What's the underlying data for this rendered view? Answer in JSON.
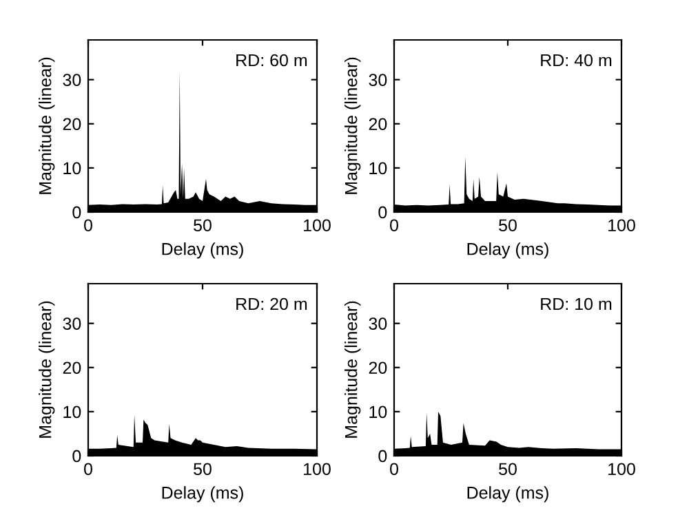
{
  "chart_data": [
    {
      "type": "area",
      "xlabel": "Delay (ms)",
      "ylabel": "Magnitude (linear)",
      "annotations": [
        "RD: 60 m"
      ],
      "xlim": [
        0,
        100
      ],
      "ylim": [
        0,
        39
      ],
      "xticks": [
        0,
        50,
        100
      ],
      "yticks": [
        0,
        10,
        20,
        30
      ],
      "grid": false,
      "series": [
        {
          "color": "#000000",
          "x": [
            0,
            5,
            10,
            15,
            20,
            25,
            30,
            32.2,
            32.6,
            33.0,
            35,
            37.5,
            38.3,
            39.0,
            39.6,
            40.0,
            40.4,
            41.0,
            41.5,
            41.9,
            42.4,
            44,
            46,
            47,
            48.5,
            50,
            51.5,
            52,
            53,
            55,
            58,
            60,
            62,
            64,
            66,
            70,
            75,
            80,
            85,
            90,
            95,
            100
          ],
          "values": [
            1.6,
            1.7,
            1.6,
            1.8,
            1.7,
            1.8,
            1.7,
            1.8,
            6,
            2,
            2.2,
            4.5,
            5,
            3,
            3,
            32,
            4,
            11,
            3,
            10,
            3,
            3,
            3.5,
            4.5,
            3,
            2.5,
            7.5,
            5,
            4,
            3.5,
            2.5,
            3.5,
            3,
            3.5,
            2.5,
            2,
            2.5,
            2,
            1.8,
            1.7,
            1.6,
            1.6
          ]
        }
      ]
    },
    {
      "type": "area",
      "xlabel": "Delay (ms)",
      "ylabel": "Magnitude (linear)",
      "annotations": [
        "RD: 40 m"
      ],
      "xlim": [
        0,
        100
      ],
      "ylim": [
        0,
        39
      ],
      "xticks": [
        0,
        50,
        100
      ],
      "yticks": [
        0,
        10,
        20,
        30
      ],
      "grid": false,
      "series": [
        {
          "color": "#000000",
          "x": [
            0,
            5,
            10,
            15,
            20,
            24.0,
            24.4,
            24.9,
            28,
            30.8,
            31.3,
            31.9,
            33,
            34.5,
            34.9,
            35.4,
            37,
            37.5,
            38.2,
            40,
            44.9,
            45.4,
            46,
            48,
            49.4,
            50,
            53,
            57,
            60,
            65,
            72,
            75,
            80,
            85,
            90,
            95,
            100
          ],
          "values": [
            1.7,
            1.5,
            1.6,
            1.5,
            1.6,
            1.7,
            6.2,
            1.8,
            1.8,
            2,
            12.5,
            4,
            3,
            2.5,
            7.5,
            3,
            3.5,
            8,
            3.5,
            2.5,
            2.5,
            9,
            4,
            3.5,
            6.5,
            3.5,
            2.8,
            3,
            2.8,
            2.5,
            2,
            2,
            1.8,
            1.7,
            1.6,
            1.5,
            1.5
          ]
        }
      ]
    },
    {
      "type": "area",
      "xlabel": "Delay (ms)",
      "ylabel": "Magnitude (linear)",
      "annotations": [
        "RD: 20 m"
      ],
      "xlim": [
        0,
        100
      ],
      "ylim": [
        0,
        39
      ],
      "xticks": [
        0,
        50,
        100
      ],
      "yticks": [
        0,
        10,
        20,
        30
      ],
      "grid": false,
      "series": [
        {
          "color": "#000000",
          "x": [
            0,
            5,
            10,
            12.3,
            12.7,
            13.2,
            19.8,
            20.2,
            20.8,
            22,
            23.8,
            24.2,
            25,
            26,
            27.5,
            29,
            35,
            35.4,
            36,
            38,
            41,
            45,
            47,
            48,
            49,
            50,
            55,
            60,
            65,
            70,
            80,
            90,
            100
          ],
          "values": [
            1.6,
            1.6,
            1.7,
            1.8,
            4.7,
            2.5,
            2,
            9.3,
            3,
            3,
            3,
            8.2,
            7.5,
            7,
            4,
            3.5,
            3,
            7.2,
            4,
            3.5,
            3,
            2.5,
            4,
            3.5,
            3.5,
            3,
            2.5,
            2,
            2.2,
            1.8,
            1.6,
            1.6,
            1.5
          ]
        }
      ]
    },
    {
      "type": "area",
      "xlabel": "Delay (ms)",
      "ylabel": "Magnitude (linear)",
      "annotations": [
        "RD: 10 m"
      ],
      "xlim": [
        0,
        100
      ],
      "ylim": [
        0,
        39
      ],
      "xticks": [
        0,
        50,
        100
      ],
      "yticks": [
        0,
        10,
        20,
        30
      ],
      "grid": false,
      "series": [
        {
          "color": "#000000",
          "x": [
            0,
            5,
            6.9,
            7.3,
            7.8,
            13.9,
            14.3,
            14.8,
            15.8,
            16.5,
            19.0,
            19.4,
            20.4,
            21.5,
            25,
            30.0,
            30.5,
            31.5,
            33,
            40,
            42,
            45,
            47,
            50,
            55,
            59,
            65,
            70,
            80,
            90,
            100
          ],
          "values": [
            1.6,
            1.7,
            1.8,
            4.5,
            2,
            2.2,
            9.8,
            4,
            5,
            2.5,
            2.5,
            10,
            9,
            3,
            2.5,
            3,
            7.4,
            5,
            2.5,
            2.3,
            3.5,
            3.2,
            2.5,
            2,
            1.8,
            2,
            1.7,
            1.6,
            1.7,
            1.5,
            1.5
          ]
        }
      ]
    }
  ]
}
